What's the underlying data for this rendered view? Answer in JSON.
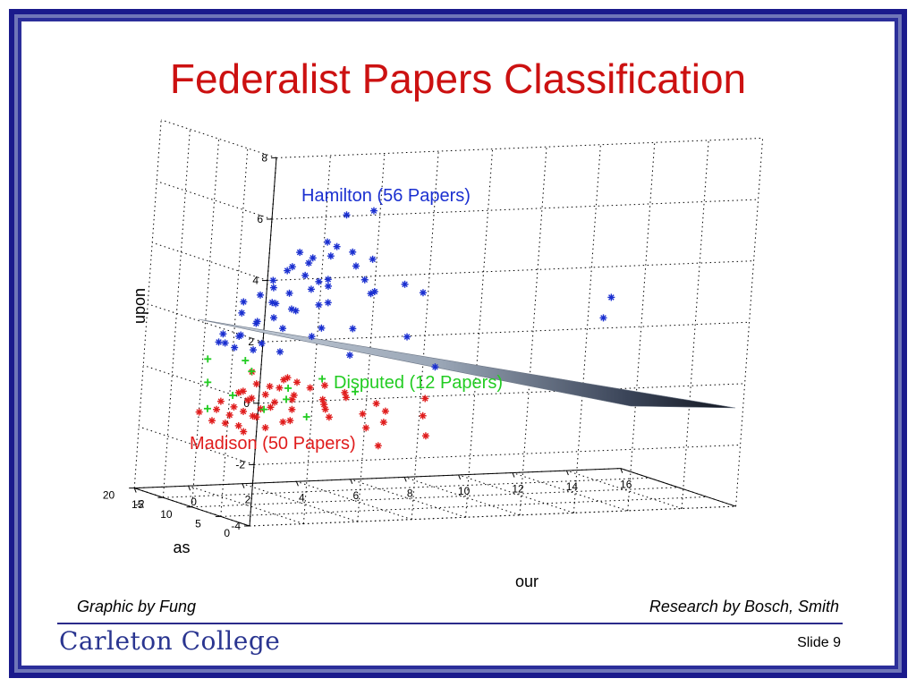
{
  "slide": {
    "title": "Federalist Papers Classification",
    "credit_left": "Graphic by Fung",
    "credit_right": "Research by Bosch, Smith",
    "logo_text": "Carleton College",
    "slide_number": "Slide 9"
  },
  "chart_data": {
    "type": "scatter",
    "projection": "3d",
    "xlabel": "our",
    "ylabel": "as",
    "zlabel": "upon",
    "xlim": [
      -2,
      16
    ],
    "ylim": [
      0,
      20
    ],
    "zlim": [
      -4,
      8
    ],
    "x_ticks": [
      -2,
      0,
      2,
      4,
      6,
      8,
      10,
      12,
      14,
      16
    ],
    "y_ticks": [
      0,
      5,
      10,
      15,
      20
    ],
    "z_ticks": [
      -4,
      -2,
      0,
      2,
      4,
      6,
      8
    ],
    "grid": true,
    "decision_plane": {
      "color": "#8a9ab0"
    },
    "series": [
      {
        "name": "Hamilton (56 Papers)",
        "color": "#1a2fd0",
        "marker": "*",
        "points": [
          [
            1.2,
            2,
            5.9
          ],
          [
            2.2,
            2,
            6.0
          ],
          [
            0.0,
            4,
            4.6
          ],
          [
            0.5,
            4,
            4.4
          ],
          [
            1.0,
            4,
            4.9
          ],
          [
            0.2,
            6,
            4.0
          ],
          [
            0.8,
            6,
            4.1
          ],
          [
            1.6,
            6,
            4.3
          ],
          [
            2.4,
            6,
            4.4
          ],
          [
            3.0,
            8,
            3.8
          ],
          [
            0.0,
            8,
            3.2
          ],
          [
            0.6,
            8,
            3.0
          ],
          [
            1.4,
            8,
            3.1
          ],
          [
            2.0,
            8,
            3.4
          ],
          [
            3.8,
            10,
            3.2
          ],
          [
            4.2,
            10,
            2.8
          ],
          [
            5.3,
            10,
            3.0
          ],
          [
            6.0,
            10,
            2.7
          ],
          [
            -0.2,
            12,
            2.5
          ],
          [
            0.4,
            12,
            2.7
          ],
          [
            1.0,
            12,
            2.4
          ],
          [
            1.6,
            12,
            2.2
          ],
          [
            2.6,
            12,
            2.3
          ],
          [
            0.2,
            14,
            2.0
          ],
          [
            0.8,
            14,
            1.7
          ],
          [
            1.4,
            14,
            1.8
          ],
          [
            2.2,
            14,
            2.0
          ],
          [
            0.0,
            16,
            1.2
          ],
          [
            0.6,
            16,
            1.1
          ],
          [
            1.2,
            16,
            1.5
          ],
          [
            2.2,
            16,
            1.3
          ],
          [
            3.3,
            16,
            1.0
          ],
          [
            0.3,
            18,
            0.8
          ],
          [
            0.9,
            18,
            0.6
          ],
          [
            1.6,
            18,
            0.5
          ],
          [
            2.6,
            18,
            0.4
          ],
          [
            13.0,
            10,
            2.3
          ],
          [
            13.2,
            12,
            1.5
          ],
          [
            6.4,
            14,
            1.0
          ],
          [
            2.1,
            10,
            3.2
          ],
          [
            4.5,
            12,
            2.6
          ],
          [
            0.9,
            10,
            3.6
          ],
          [
            3.2,
            14,
            1.4
          ],
          [
            1.9,
            18,
            0.7
          ],
          [
            8.4,
            18,
            -0.3
          ],
          [
            0.4,
            10,
            3.3
          ],
          [
            1.8,
            6,
            4.6
          ],
          [
            2.9,
            12,
            2.9
          ],
          [
            4.8,
            16,
            1.2
          ],
          [
            0.1,
            16,
            0.9
          ],
          [
            5.2,
            18,
            0.2
          ],
          [
            1.3,
            14,
            2.3
          ],
          [
            3.6,
            8,
            4.0
          ],
          [
            0.7,
            6,
            3.7
          ],
          [
            2.5,
            10,
            2.5
          ],
          [
            1.1,
            18,
            1.0
          ]
        ]
      },
      {
        "name": "Madison (50 Papers)",
        "color": "#e01c1c",
        "marker": "*",
        "points": [
          [
            0.5,
            12,
            -0.2
          ],
          [
            1.0,
            12,
            -0.3
          ],
          [
            1.5,
            12,
            -0.1
          ],
          [
            2.0,
            12,
            -0.2
          ],
          [
            2.5,
            12,
            -0.4
          ],
          [
            0.3,
            14,
            -0.6
          ],
          [
            0.8,
            14,
            -0.8
          ],
          [
            1.3,
            14,
            -0.7
          ],
          [
            1.8,
            14,
            -0.5
          ],
          [
            2.3,
            14,
            -0.9
          ],
          [
            0.1,
            16,
            -1.0
          ],
          [
            0.6,
            16,
            -1.2
          ],
          [
            1.1,
            16,
            -1.0
          ],
          [
            1.6,
            16,
            -1.3
          ],
          [
            2.1,
            16,
            -1.1
          ],
          [
            0.4,
            18,
            -1.4
          ],
          [
            0.9,
            18,
            -1.6
          ],
          [
            1.4,
            18,
            -1.5
          ],
          [
            1.9,
            18,
            -1.7
          ],
          [
            2.4,
            18,
            -1.4
          ],
          [
            0.7,
            20,
            -1.9
          ],
          [
            1.2,
            20,
            -2.0
          ],
          [
            1.7,
            20,
            -2.1
          ],
          [
            2.2,
            20,
            -1.8
          ],
          [
            2.7,
            20,
            -2.2
          ],
          [
            3.0,
            12,
            -0.8
          ],
          [
            3.5,
            14,
            -1.1
          ],
          [
            4.0,
            16,
            -1.4
          ],
          [
            5.0,
            12,
            -1.0
          ],
          [
            5.8,
            14,
            -1.4
          ],
          [
            6.2,
            16,
            -1.9
          ],
          [
            6.8,
            12,
            -0.9
          ],
          [
            7.2,
            14,
            -1.6
          ],
          [
            7.8,
            16,
            -2.4
          ],
          [
            6.5,
            18,
            -2.8
          ],
          [
            2.8,
            16,
            -0.9
          ],
          [
            3.2,
            18,
            -1.5
          ],
          [
            3.6,
            20,
            -2.0
          ],
          [
            0.2,
            20,
            -1.6
          ],
          [
            2.6,
            10,
            -0.2
          ],
          [
            1.2,
            10,
            0.1
          ],
          [
            4.3,
            14,
            -0.9
          ],
          [
            5.4,
            16,
            -1.6
          ],
          [
            0.9,
            16,
            -0.7
          ],
          [
            1.9,
            20,
            -2.3
          ],
          [
            3.8,
            12,
            -0.6
          ],
          [
            2.9,
            18,
            -1.9
          ],
          [
            6.0,
            18,
            -2.2
          ],
          [
            4.6,
            18,
            -1.8
          ],
          [
            0.3,
            12,
            0.2
          ]
        ]
      },
      {
        "name": "Disputed (12 Papers)",
        "color": "#22cc22",
        "marker": "+",
        "points": [
          [
            -0.5,
            16,
            0.4
          ],
          [
            0.9,
            16,
            0.3
          ],
          [
            0.0,
            18,
            -0.5
          ],
          [
            1.6,
            18,
            -0.2
          ],
          [
            3.0,
            18,
            -0.8
          ],
          [
            0.5,
            20,
            -1.5
          ],
          [
            1.4,
            20,
            -1.1
          ],
          [
            2.6,
            20,
            -1.6
          ],
          [
            3.4,
            20,
            -1.3
          ],
          [
            4.2,
            20,
            -1.9
          ],
          [
            3.8,
            16,
            -0.4
          ],
          [
            5.5,
            18,
            -1.0
          ]
        ]
      }
    ],
    "annotations": [
      {
        "text": "Hamilton (56 Papers)",
        "color": "#1a2fd0"
      },
      {
        "text": "Disputed (12 Papers)",
        "color": "#22cc22"
      },
      {
        "text": "Madison (50 Papers)",
        "color": "#e01c1c"
      }
    ]
  }
}
